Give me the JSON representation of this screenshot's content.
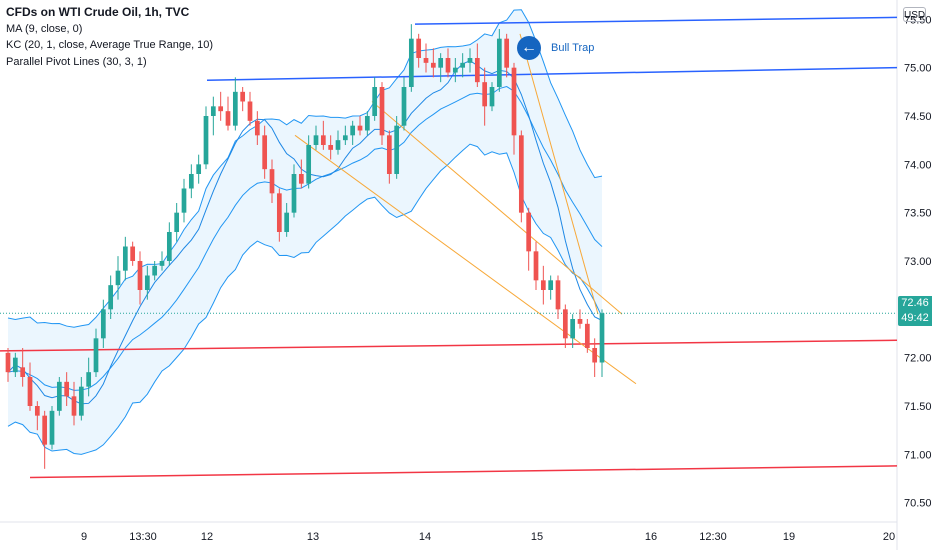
{
  "legend": {
    "title": "CFDs on WTI Crude Oil, 1h, TVC",
    "line1": "MA (9, close, 0)",
    "line2": "KC (20, 1, close, Average True Range, 10)",
    "line3": "Parallel Pivot Lines (30, 3, 1)"
  },
  "currency_label": "USD",
  "last_price": {
    "value": "72.46",
    "countdown": "49:42"
  },
  "callout": {
    "label": "Bull Trap",
    "icon": "arrow-left-icon"
  },
  "colors": {
    "up": "#26a69a",
    "down": "#ef5350",
    "band_line": "#2196f3",
    "band_fill": "#e3f2fd",
    "pivot_upper": "#2962ff",
    "pivot_lower": "#f23645",
    "trend": "#f7a838",
    "price_line": "#26a69a"
  },
  "chart_data": {
    "type": "candlestick",
    "title": "CFDs on WTI Crude Oil, 1h, TVC",
    "ylim": [
      70.3,
      75.7
    ],
    "y_ticks": [
      "75.50",
      "75.00",
      "74.50",
      "74.00",
      "73.50",
      "73.00",
      "72.50",
      "72.00",
      "71.50",
      "71.00",
      "70.50"
    ],
    "x_ticks": [
      "9",
      "13:30",
      "12",
      "13",
      "14",
      "15",
      "16",
      "12:30",
      "19",
      "20"
    ],
    "grid": false,
    "ohlc": [
      [
        72.05,
        72.1,
        71.75,
        71.85
      ],
      [
        71.85,
        72.05,
        71.8,
        72.0
      ],
      [
        71.9,
        72.1,
        71.7,
        71.8
      ],
      [
        71.8,
        71.95,
        71.45,
        71.5
      ],
      [
        71.5,
        71.55,
        71.25,
        71.4
      ],
      [
        71.4,
        71.45,
        70.85,
        71.1
      ],
      [
        71.1,
        71.5,
        71.05,
        71.45
      ],
      [
        71.45,
        71.8,
        71.4,
        71.75
      ],
      [
        71.75,
        71.85,
        71.5,
        71.6
      ],
      [
        71.6,
        71.75,
        71.3,
        71.4
      ],
      [
        71.4,
        71.8,
        71.35,
        71.7
      ],
      [
        71.7,
        72.0,
        71.6,
        71.85
      ],
      [
        71.85,
        72.3,
        71.8,
        72.2
      ],
      [
        72.2,
        72.6,
        72.1,
        72.5
      ],
      [
        72.5,
        72.85,
        72.4,
        72.75
      ],
      [
        72.75,
        73.05,
        72.6,
        72.9
      ],
      [
        72.9,
        73.25,
        72.8,
        73.15
      ],
      [
        73.15,
        73.2,
        72.95,
        73.0
      ],
      [
        73.0,
        73.1,
        72.55,
        72.7
      ],
      [
        72.7,
        72.95,
        72.6,
        72.85
      ],
      [
        72.85,
        73.0,
        72.8,
        72.95
      ],
      [
        72.95,
        73.1,
        72.9,
        73.0
      ],
      [
        73.0,
        73.4,
        72.95,
        73.3
      ],
      [
        73.3,
        73.6,
        73.2,
        73.5
      ],
      [
        73.5,
        73.85,
        73.4,
        73.75
      ],
      [
        73.75,
        74.0,
        73.65,
        73.9
      ],
      [
        73.9,
        74.1,
        73.8,
        74.0
      ],
      [
        74.0,
        74.6,
        73.95,
        74.5
      ],
      [
        74.5,
        74.7,
        74.3,
        74.6
      ],
      [
        74.6,
        74.75,
        74.45,
        74.55
      ],
      [
        74.55,
        74.7,
        74.35,
        74.4
      ],
      [
        74.4,
        74.9,
        74.35,
        74.75
      ],
      [
        74.75,
        74.8,
        74.55,
        74.65
      ],
      [
        74.65,
        74.75,
        74.4,
        74.45
      ],
      [
        74.45,
        74.55,
        74.2,
        74.3
      ],
      [
        74.3,
        74.4,
        73.85,
        73.95
      ],
      [
        73.95,
        74.05,
        73.6,
        73.7
      ],
      [
        73.7,
        73.75,
        73.2,
        73.3
      ],
      [
        73.3,
        73.6,
        73.25,
        73.5
      ],
      [
        73.5,
        74.0,
        73.45,
        73.9
      ],
      [
        73.9,
        74.05,
        73.75,
        73.8
      ],
      [
        73.8,
        74.3,
        73.75,
        74.2
      ],
      [
        74.2,
        74.4,
        74.15,
        74.3
      ],
      [
        74.3,
        74.45,
        74.15,
        74.2
      ],
      [
        74.2,
        74.3,
        74.05,
        74.15
      ],
      [
        74.15,
        74.35,
        74.1,
        74.25
      ],
      [
        74.25,
        74.4,
        74.2,
        74.3
      ],
      [
        74.3,
        74.45,
        74.2,
        74.4
      ],
      [
        74.4,
        74.5,
        74.3,
        74.35
      ],
      [
        74.35,
        74.55,
        74.3,
        74.5
      ],
      [
        74.5,
        74.9,
        74.45,
        74.8
      ],
      [
        74.8,
        74.85,
        74.2,
        74.3
      ],
      [
        74.3,
        74.35,
        73.8,
        73.9
      ],
      [
        73.9,
        74.5,
        73.85,
        74.4
      ],
      [
        74.4,
        74.9,
        74.35,
        74.8
      ],
      [
        74.8,
        75.45,
        74.75,
        75.3
      ],
      [
        75.3,
        75.35,
        75.0,
        75.1
      ],
      [
        75.1,
        75.25,
        74.95,
        75.05
      ],
      [
        75.05,
        75.2,
        74.9,
        75.0
      ],
      [
        75.0,
        75.15,
        74.85,
        75.1
      ],
      [
        75.1,
        75.2,
        74.9,
        74.95
      ],
      [
        74.95,
        75.1,
        74.85,
        75.0
      ],
      [
        75.0,
        75.15,
        74.9,
        75.05
      ],
      [
        75.05,
        75.2,
        74.95,
        75.1
      ],
      [
        75.1,
        75.25,
        74.8,
        74.85
      ],
      [
        74.85,
        75.0,
        74.4,
        74.6
      ],
      [
        74.6,
        74.85,
        74.55,
        74.8
      ],
      [
        74.8,
        75.4,
        74.75,
        75.3
      ],
      [
        75.3,
        75.35,
        74.9,
        75.0
      ],
      [
        75.0,
        75.05,
        74.1,
        74.3
      ],
      [
        74.3,
        74.35,
        73.4,
        73.5
      ],
      [
        73.5,
        73.55,
        72.9,
        73.1
      ],
      [
        73.1,
        73.2,
        72.7,
        72.8
      ],
      [
        72.8,
        72.95,
        72.55,
        72.7
      ],
      [
        72.7,
        72.85,
        72.6,
        72.8
      ],
      [
        72.8,
        72.85,
        72.4,
        72.5
      ],
      [
        72.5,
        72.55,
        72.1,
        72.2
      ],
      [
        72.2,
        72.45,
        72.1,
        72.4
      ],
      [
        72.4,
        72.5,
        72.3,
        72.35
      ],
      [
        72.35,
        72.4,
        72.05,
        72.1
      ],
      [
        72.1,
        72.2,
        71.8,
        71.95
      ],
      [
        71.95,
        72.5,
        71.8,
        72.46
      ]
    ],
    "ma_period": 9,
    "pivot_levels": [
      {
        "y_start": 74.87,
        "y_end": 75.0
      },
      {
        "y_start": 75.45,
        "y_end": 75.52
      },
      {
        "y_start": 72.07,
        "y_end": 72.18
      },
      {
        "y_start": 70.76,
        "y_end": 70.88
      }
    ],
    "trend_lines": [
      {
        "y_start": 74.3,
        "y_end": 71.73
      },
      {
        "y_start": 74.65,
        "y_end": 72.45
      },
      {
        "y_start": 75.35,
        "y_end": 72.45
      }
    ]
  }
}
